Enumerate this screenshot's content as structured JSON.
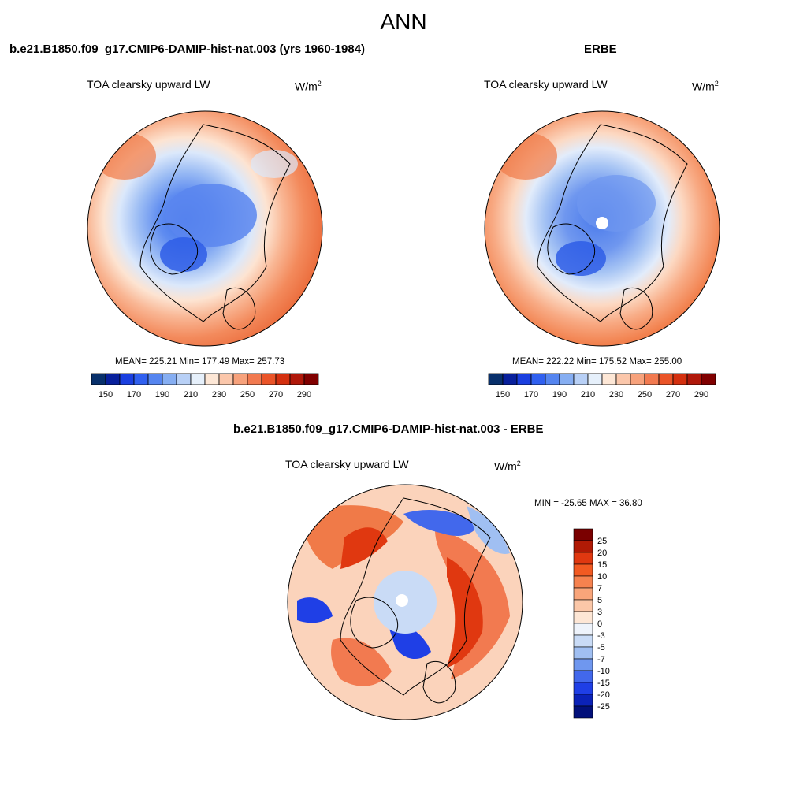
{
  "main_title": "ANN",
  "panels": [
    {
      "title": "b.e21.B1850.f09_g17.CMIP6-DAMIP-hist-nat.003 (yrs 1960-1984)",
      "field": "TOA clearsky upward LW",
      "units_base": "W/m",
      "units_sup": "2",
      "stats": "MEAN= 225.21  Min= 177.49  Max= 257.73"
    },
    {
      "title": "ERBE",
      "field": "TOA clearsky upward LW",
      "units_base": "W/m",
      "units_sup": "2",
      "stats": "MEAN= 222.22  Min= 175.52  Max= 255.00"
    },
    {
      "title": "b.e21.B1850.f09_g17.CMIP6-DAMIP-hist-nat.003 - ERBE",
      "field": "TOA clearsky upward LW",
      "units_base": "W/m",
      "units_sup": "2",
      "stats": "MIN = -25.65 MAX =  36.80"
    }
  ],
  "colorbar_abs": {
    "colors": [
      "#08306b",
      "#08209c",
      "#1a3fe0",
      "#3060f0",
      "#5585f0",
      "#86aef2",
      "#b8d0f6",
      "#e6f0fb",
      "#fde7d6",
      "#fbc7ab",
      "#f7a27c",
      "#f27a50",
      "#ea5428",
      "#d4300f",
      "#b0180a",
      "#800000"
    ],
    "labels": [
      "150",
      "170",
      "190",
      "210",
      "230",
      "250",
      "270",
      "290"
    ]
  },
  "colorbar_diff": {
    "colors": [
      "#7a0000",
      "#b01a05",
      "#e03810",
      "#f25a22",
      "#f6824f",
      "#f9a57a",
      "#fbc7a8",
      "#fde6d5",
      "#eef3fb",
      "#c9dbf6",
      "#a0bff2",
      "#6f97ef",
      "#4268ec",
      "#1f3fe6",
      "#0b22b8",
      "#02107a"
    ],
    "labels": [
      "25",
      "20",
      "15",
      "10",
      "7",
      "5",
      "3",
      "0",
      "-3",
      "-5",
      "-7",
      "-10",
      "-15",
      "-20",
      "-25"
    ]
  }
}
